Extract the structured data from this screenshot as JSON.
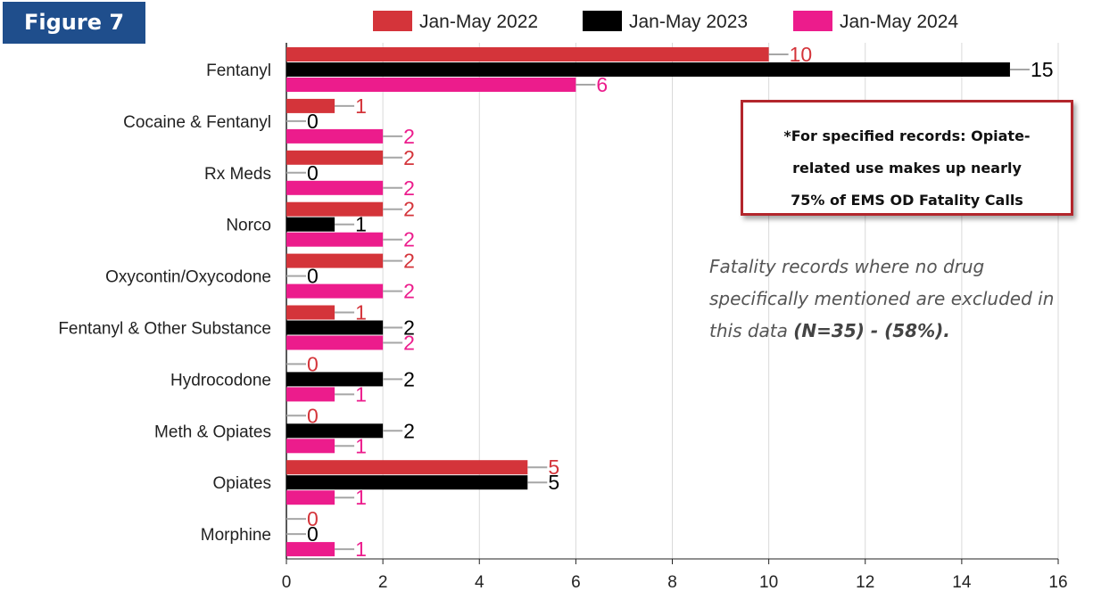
{
  "figure_label": "Figure 7",
  "callout": {
    "lines": [
      "*For specified records: Opiate-",
      "related use makes up nearly",
      "75% of EMS OD Fatality Calls"
    ]
  },
  "note": {
    "lines": [
      "Fatality records where no drug",
      "specifically mentioned are excluded in"
    ],
    "last_line_prefix": "this data ",
    "last_line_bold": "(N=35) - (58%)."
  },
  "chart_data": {
    "type": "bar",
    "orientation": "horizontal",
    "categories": [
      "Fentanyl",
      "Cocaine & Fentanyl",
      "Rx Meds",
      "Norco",
      "Oxycontin/Oxycodone",
      "Fentanyl & Other Substance",
      "Hydrocodone",
      "Meth & Opiates",
      "Opiates",
      "Morphine"
    ],
    "series": [
      {
        "name": "Jan-May 2022",
        "color": "#d4343a",
        "label_color": "#d4343a",
        "values": [
          10,
          1,
          2,
          2,
          2,
          1,
          0,
          0,
          5,
          0
        ]
      },
      {
        "name": "Jan-May 2023",
        "color": "#000000",
        "label_color": "#000000",
        "values": [
          15,
          0,
          0,
          1,
          0,
          2,
          2,
          2,
          5,
          0
        ]
      },
      {
        "name": "Jan-May 2024",
        "color": "#ec1c8c",
        "label_color": "#ec1c8c",
        "values": [
          6,
          2,
          2,
          2,
          2,
          2,
          1,
          1,
          1,
          1
        ]
      }
    ],
    "xlim": [
      0,
      16
    ],
    "xticks": [
      0,
      2,
      4,
      6,
      8,
      10,
      12,
      14,
      16
    ],
    "grid": "vertical",
    "legend_position": "top",
    "title": "",
    "xlabel": "",
    "ylabel": ""
  }
}
